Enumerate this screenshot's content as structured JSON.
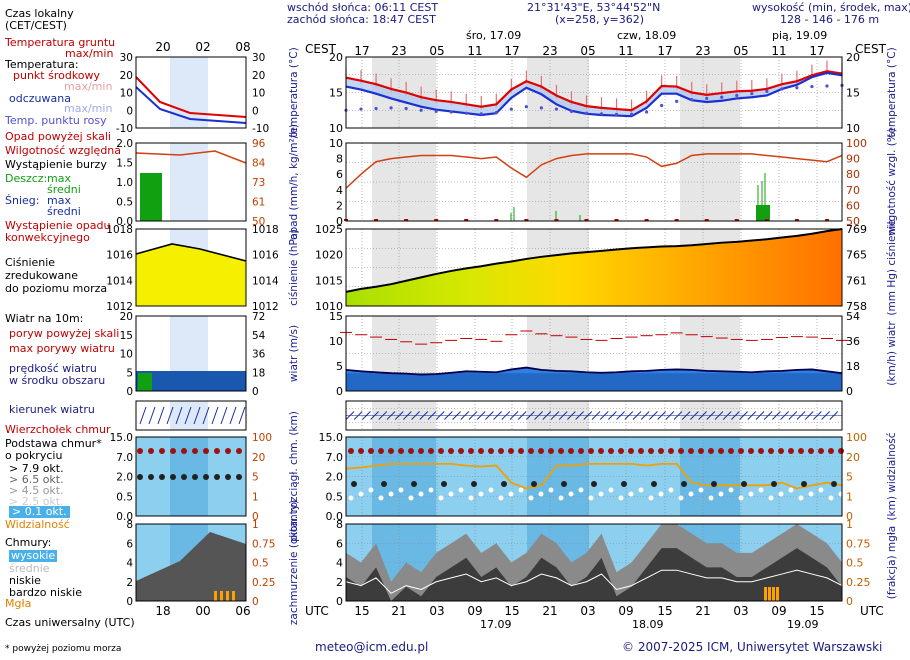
{
  "header": {
    "sunrise": "wschód słońca: 06:11 CEST",
    "sunset": "zachód słońca: 18:47 CEST",
    "coords": "21°31'43\"E, 53°44'52\"N",
    "grid": "(x=258,  y=362)",
    "elev_label": "wysokość (min, środek, max)",
    "elev_values": "128 - 146 - 176 m"
  },
  "days": {
    "top": [
      "śro, 17.09",
      "czw, 18.09",
      "pią, 19.09"
    ],
    "bottom": [
      "17.09",
      "18.09",
      "19.09"
    ]
  },
  "time_axis": {
    "cest_label": "CEST",
    "utc_label": "UTC",
    "cest_hours": [
      "17",
      "23",
      "05",
      "11",
      "17",
      "23",
      "05",
      "11",
      "17",
      "23",
      "05",
      "11",
      "17"
    ],
    "utc_hours": [
      "15",
      "21",
      "03",
      "09",
      "15",
      "21",
      "03",
      "09",
      "15",
      "21",
      "03",
      "09",
      "15"
    ]
  },
  "legend": {
    "local_time": "Czas lokalny",
    "local_time2": "(CET/CEST)",
    "legend_hours_top": [
      "20",
      "02",
      "08"
    ],
    "legend_hours_bottom": [
      "18",
      "00",
      "06"
    ],
    "soil_temp": "Temperatura gruntu",
    "soil_temp2": "max/min",
    "temperature": "Temperatura:",
    "mid_point": "punkt środkowy",
    "maxmin": "max/min",
    "perceived": "odczuwana",
    "maxmin2": "max/min",
    "dew_point": "Temp. punktu rosy",
    "precip_above": "Opad powyżej skali",
    "humidity": "Wilgotność względna",
    "storm": "Wystąpienie burzy",
    "rain": "Deszcz:",
    "rain_max": "max",
    "rain_mid": "średni",
    "snow": "Śnieg:",
    "snow_max": "max",
    "snow_mid": "średni",
    "conv": "Wystąpienie opadu",
    "conv2": "konwekcyjnego",
    "pressure": "Ciśnienie",
    "pressure2": "zredukowane",
    "pressure3": "do poziomu morza",
    "wind_at": "Wiatr na 10m:",
    "gust_above": "poryw powyżej skali",
    "gust_max": "max porywy wiatru",
    "wind_speed": "prędkość wiatru",
    "wind_speed2": "w środku obszaru",
    "wind_dir": "kierunek wiatru",
    "cloud_top": "Wierzchołek chmur",
    "cloud_base": "Podstawa chmur*",
    "cloud_base2": "o pokryciu",
    "okt79": "> 7.9 okt.",
    "okt65": "> 6.5 okt.",
    "okt45": "> 4.5 okt.",
    "okt25": "> 2.5 okt.",
    "okt01": "> 0.1 okt.",
    "visibility": "Widzialność",
    "clouds": "Chmury:",
    "high": "wysokie",
    "mid": "średnie",
    "low": "niskie",
    "very_low": "bardzo niskie",
    "fog": "Mgła",
    "utc": "Czas uniwersalny (UTC)",
    "footnote": "* powyżej poziomu morza"
  },
  "panels": {
    "temp": {
      "ylabel": "temperatura (°C)",
      "ticks": [
        20,
        15,
        10
      ],
      "legend_ticks_l": [
        30,
        20,
        10,
        0,
        -10
      ],
      "legend_ticks_r": [
        30,
        20,
        10,
        0,
        -10
      ]
    },
    "precip": {
      "ylabel": "opad (mm/h, kg/m²/h)",
      "ylabel_r": "wilgotność wzgl. (%)",
      "ticks_l": [
        10,
        8,
        6,
        4,
        2,
        0
      ],
      "ticks_r": [
        100,
        90,
        80,
        70,
        60,
        50
      ],
      "legend_ticks_l": [
        "2.0",
        "1.5",
        "1.0",
        "0.5",
        "0.0"
      ],
      "legend_ticks_r": [
        96,
        84,
        73,
        61,
        50
      ]
    },
    "pressure": {
      "ylabel": "ciśnienie (hPa)",
      "ylabel_r": "(mm Hg) ciśnienie",
      "ticks_l": [
        1025,
        1020,
        1015,
        1010
      ],
      "ticks_r": [
        769,
        765,
        761,
        758
      ],
      "legend_ticks_l": [
        1018,
        1016,
        1014,
        1012
      ],
      "legend_ticks_r": [
        1018,
        1016,
        1014,
        1012
      ]
    },
    "wind": {
      "ylabel": "wiatr (m/s)",
      "ylabel_r": "(km/h) wiatr",
      "ticks_l": [
        15,
        10,
        5,
        0
      ],
      "ticks_r": [
        54,
        36,
        18,
        0
      ],
      "legend_ticks_l": [
        20,
        15,
        10,
        5,
        0
      ],
      "legend_ticks_r": [
        72,
        54,
        36,
        18,
        0
      ]
    },
    "clouds": {
      "ylabel": "pion. rozciągł. chm. (km)",
      "ylabel_r": "(km) widzialność",
      "ticks_l": [
        "15.0",
        "7.0",
        "2.0",
        "0.5",
        "0.0"
      ],
      "ticks_r": [
        100,
        20,
        5,
        1,
        0
      ]
    },
    "cover": {
      "ylabel": "zachmurzenie (oktanty)",
      "ylabel_r": "(frakcja) mgła",
      "ticks_l": [
        8,
        6,
        4,
        2,
        0
      ],
      "ticks_r": [
        "1",
        "0.75",
        "0.5",
        "0.25",
        "0"
      ]
    }
  },
  "chart_data": [
    {
      "type": "line",
      "title": "temperatura (°C)",
      "xlabel": "CEST",
      "ylabel": "°C",
      "ylim": [
        8,
        20
      ],
      "series": [
        {
          "name": "punkt środkowy",
          "values": [
            16.5,
            16.0,
            15.4,
            14.6,
            14.0,
            13.2,
            12.7,
            12.4,
            12.0,
            11.6,
            12.0,
            14.5,
            15.9,
            15.0,
            13.5,
            12.4,
            11.7,
            11.4,
            11.2,
            11.0,
            12.5,
            15.1,
            15.0,
            14.0,
            13.6,
            13.9,
            14.2,
            14.3,
            14.6,
            15.4,
            15.9,
            16.9,
            17.6,
            17.2
          ]
        },
        {
          "name": "odczuwana",
          "values": [
            15.0,
            14.5,
            13.8,
            13.0,
            12.3,
            11.6,
            11.1,
            10.8,
            10.5,
            10.2,
            10.5,
            13.1,
            14.8,
            13.7,
            12.0,
            10.9,
            10.4,
            10.2,
            10.1,
            10.0,
            11.4,
            13.8,
            13.8,
            12.7,
            12.4,
            12.6,
            13.0,
            13.2,
            13.5,
            14.6,
            15.3,
            16.6,
            17.3,
            16.9
          ]
        },
        {
          "name": "temp. punktu rosy",
          "values": [
            11.0,
            11.2,
            11.3,
            11.4,
            11.3,
            11.0,
            10.8,
            10.7,
            10.5,
            10.4,
            10.6,
            11.2,
            11.6,
            11.4,
            11.2,
            10.8,
            10.5,
            10.4,
            10.3,
            10.3,
            10.7,
            11.8,
            12.5,
            12.8,
            13.0,
            13.2,
            13.5,
            13.8,
            14.2,
            14.6,
            14.8,
            15.0,
            15.1,
            15.2
          ]
        }
      ]
    },
    {
      "type": "line",
      "title": "wilgotność względna (%)",
      "ylim": [
        50,
        100
      ],
      "series": [
        {
          "name": "wilgotność",
          "values": [
            71,
            80,
            88,
            90,
            91,
            92,
            92,
            92,
            91,
            90,
            91,
            84,
            78,
            86,
            90,
            92,
            93,
            93,
            93,
            93,
            91,
            85,
            87,
            92,
            93,
            93,
            93,
            93,
            92,
            91,
            90,
            89,
            88,
            92
          ]
        }
      ]
    },
    {
      "type": "area",
      "title": "ciśnienie (hPa)",
      "ylim": [
        1007,
        1025
      ],
      "series": [
        {
          "name": "ciśnienie",
          "values": [
            1010.3,
            1011.0,
            1011.5,
            1012.1,
            1012.9,
            1013.7,
            1014.5,
            1015.2,
            1015.8,
            1016.3,
            1016.9,
            1017.4,
            1018.0,
            1018.5,
            1018.9,
            1019.3,
            1019.6,
            1019.9,
            1020.2,
            1020.5,
            1020.7,
            1020.9,
            1021.0,
            1021.2,
            1021.5,
            1021.8,
            1022.0,
            1022.3,
            1022.6,
            1023.0,
            1023.4,
            1023.9,
            1024.5,
            1025.0
          ]
        }
      ]
    },
    {
      "type": "line",
      "title": "wiatr (m/s)",
      "ylim": [
        0,
        16
      ],
      "series": [
        {
          "name": "max porywy wiatru",
          "values": [
            12.5,
            12.0,
            11.5,
            11.0,
            10.5,
            10.0,
            10.3,
            10.8,
            11.2,
            11.0,
            10.6,
            12.0,
            12.8,
            12.2,
            11.8,
            11.5,
            11.0,
            10.8,
            11.2,
            11.5,
            11.8,
            12.0,
            12.4,
            12.0,
            11.6,
            11.3,
            11.0,
            10.8,
            11.0,
            11.4,
            11.6,
            11.5,
            11.2,
            10.8
          ]
        },
        {
          "name": "prędkość wiatru",
          "values": [
            4.5,
            4.2,
            4.0,
            3.8,
            3.7,
            3.5,
            3.6,
            3.9,
            4.2,
            4.1,
            4.0,
            4.6,
            5.0,
            4.5,
            4.3,
            4.2,
            4.0,
            3.9,
            4.0,
            4.2,
            4.3,
            4.5,
            4.6,
            4.5,
            4.3,
            4.2,
            4.1,
            4.0,
            4.2,
            4.3,
            4.5,
            4.6,
            4.2,
            3.8
          ]
        }
      ]
    },
    {
      "type": "line",
      "title": "widzialność (km)",
      "ylim": [
        0,
        100
      ],
      "series": [
        {
          "name": "widzialność",
          "values": [
            15,
            16,
            18,
            20,
            20,
            20,
            20,
            20,
            18,
            17,
            18,
            6,
            4,
            5,
            18,
            18,
            20,
            20,
            20,
            20,
            18,
            20,
            20,
            6,
            5,
            5,
            5,
            5,
            5,
            6,
            4,
            5,
            6,
            5
          ]
        }
      ]
    },
    {
      "type": "area",
      "title": "zachmurzenie (oktanty)",
      "ylim": [
        0,
        8
      ],
      "series": [
        {
          "name": "chmury",
          "values": [
            5,
            4,
            6,
            2,
            4,
            3,
            5,
            6,
            7,
            5,
            6,
            4,
            5,
            7,
            6,
            4,
            5,
            7,
            3,
            4,
            6,
            8,
            8,
            7,
            6,
            6,
            5,
            5,
            6,
            7,
            8,
            7,
            6,
            4
          ]
        }
      ]
    }
  ],
  "footer": {
    "email": "meteo@icm.edu.pl",
    "copyright": "© 2007-2025 ICM, Uniwersytet Warszawski"
  },
  "colors": {
    "red": "#e00000",
    "blue": "#1a30d0",
    "green": "#10a010",
    "orange": "#ff8c00",
    "darkred": "#a01010",
    "skyblue": "#87cdf0"
  }
}
